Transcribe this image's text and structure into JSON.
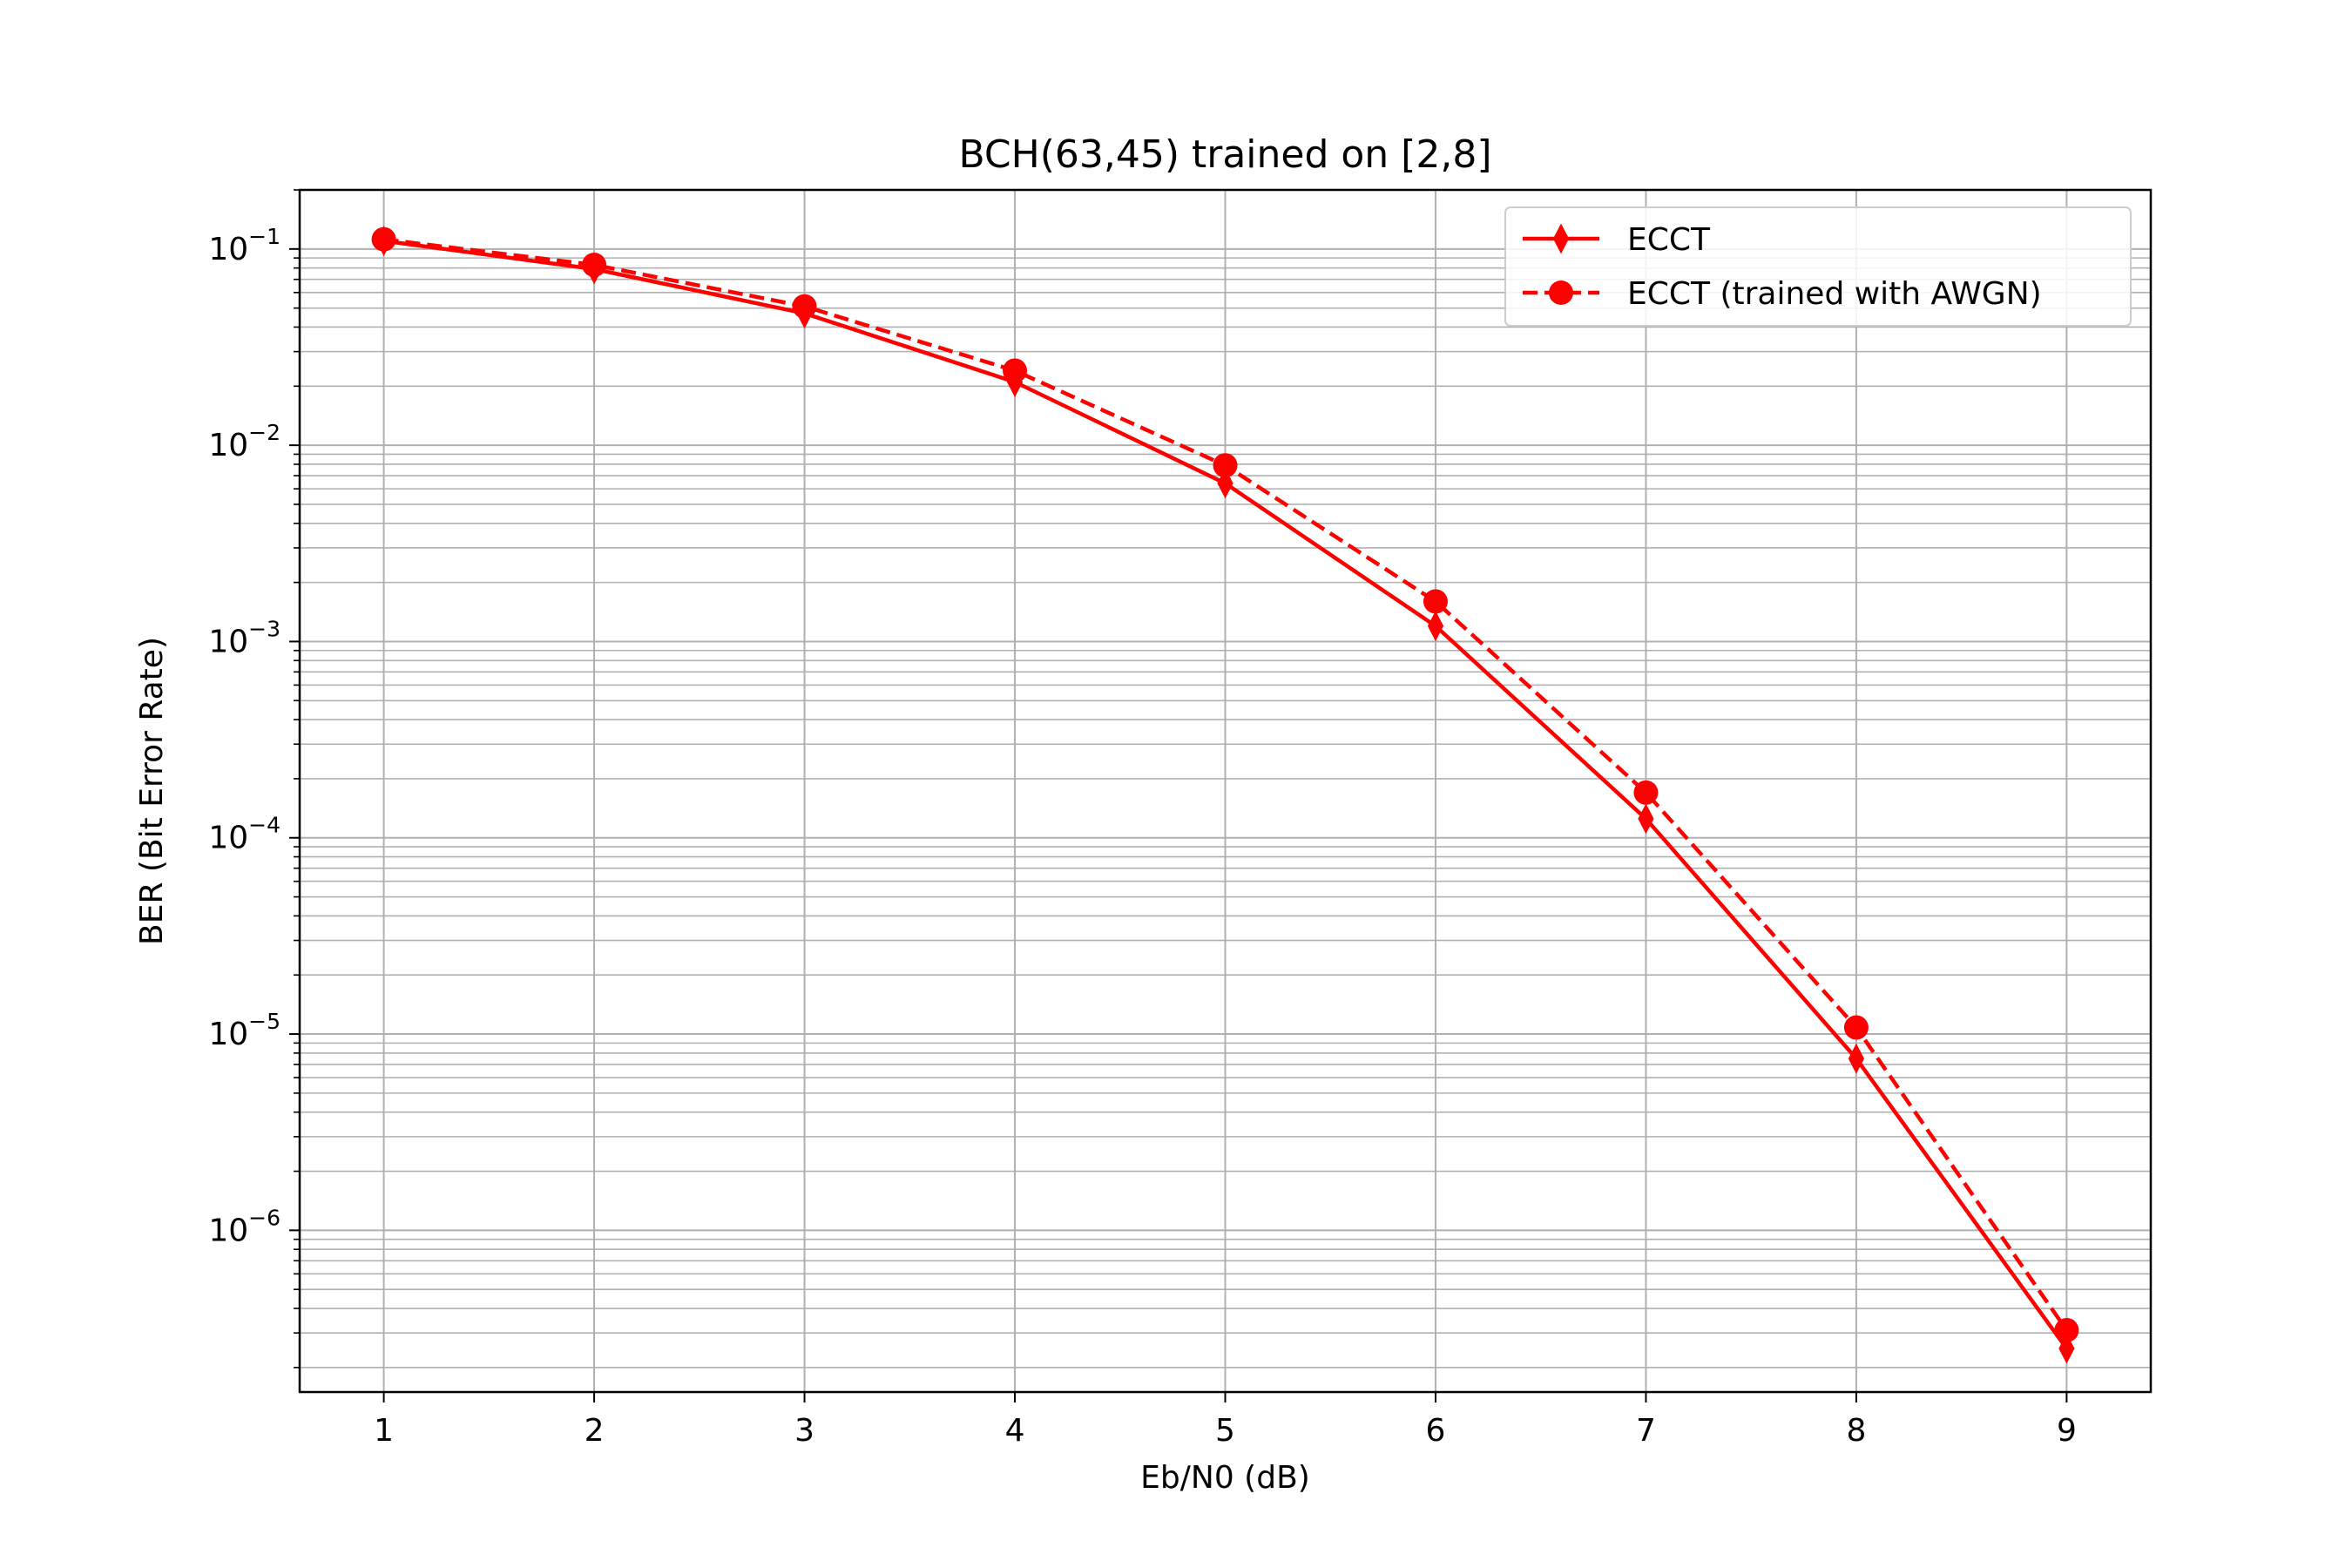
{
  "chart_data": {
    "type": "line",
    "title": "BCH(63,45) trained on [2,8]",
    "xlabel": "Eb/N0 (dB)",
    "ylabel": "BER (Bit Error Rate)",
    "x": [
      1,
      2,
      3,
      4,
      5,
      6,
      7,
      8,
      9
    ],
    "xlim": [
      0.6,
      9.4
    ],
    "ylim": [
      1.5e-07,
      0.2
    ],
    "yscale": "log",
    "grid": true,
    "legend_position": "top-right",
    "x_ticks": [
      "1",
      "2",
      "3",
      "4",
      "5",
      "6",
      "7",
      "8",
      "9"
    ],
    "y_ticks": [
      {
        "value": 0.1,
        "base": "10",
        "exp": "−1"
      },
      {
        "value": 0.01,
        "base": "10",
        "exp": "−2"
      },
      {
        "value": 0.001,
        "base": "10",
        "exp": "−3"
      },
      {
        "value": 0.0001,
        "base": "10",
        "exp": "−4"
      },
      {
        "value": 1e-05,
        "base": "10",
        "exp": "−5"
      },
      {
        "value": 1e-06,
        "base": "10",
        "exp": "−6"
      }
    ],
    "series": [
      {
        "name": "ECCT",
        "color": "#ff0000",
        "linestyle": "solid",
        "marker": "thin-diamond",
        "values": [
          0.11,
          0.079,
          0.047,
          0.021,
          0.0064,
          0.0012,
          0.000125,
          7.5e-06,
          2.5e-07
        ]
      },
      {
        "name": "ECCT (trained with AWGN)",
        "color": "#ff0000",
        "linestyle": "dashed",
        "marker": "circle",
        "values": [
          0.112,
          0.083,
          0.051,
          0.024,
          0.0079,
          0.0016,
          0.00017,
          1.08e-05,
          3.1e-07
        ]
      }
    ]
  }
}
